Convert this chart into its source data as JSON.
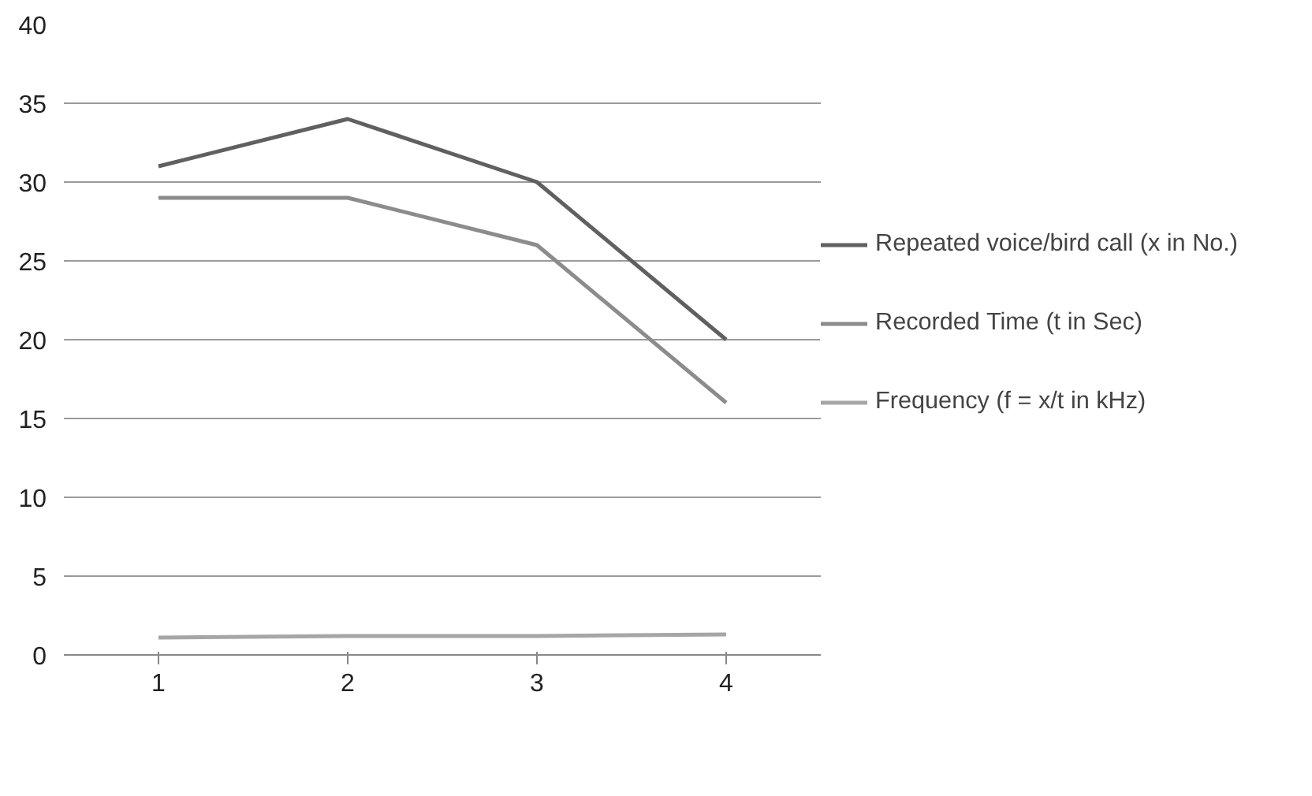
{
  "chart_data": {
    "type": "line",
    "categories": [
      "1",
      "2",
      "3",
      "4"
    ],
    "series": [
      {
        "name": "Repeated voice/bird call (x in No.)",
        "color": "#606060",
        "values": [
          31,
          34,
          30,
          20
        ]
      },
      {
        "name": "Recorded Time (t in Sec)",
        "color": "#8c8c8c",
        "values": [
          29,
          29,
          26,
          16
        ]
      },
      {
        "name": "Frequency (f = x/t in kHz)",
        "color": "#a6a6a6",
        "values": [
          1.1,
          1.2,
          1.2,
          1.3
        ]
      }
    ],
    "ylim": [
      0,
      40
    ],
    "yticks": [
      0,
      5,
      10,
      15,
      20,
      25,
      30,
      35,
      40
    ],
    "grid": "y",
    "legend": "right",
    "marker": "none",
    "line_style": "solid"
  }
}
